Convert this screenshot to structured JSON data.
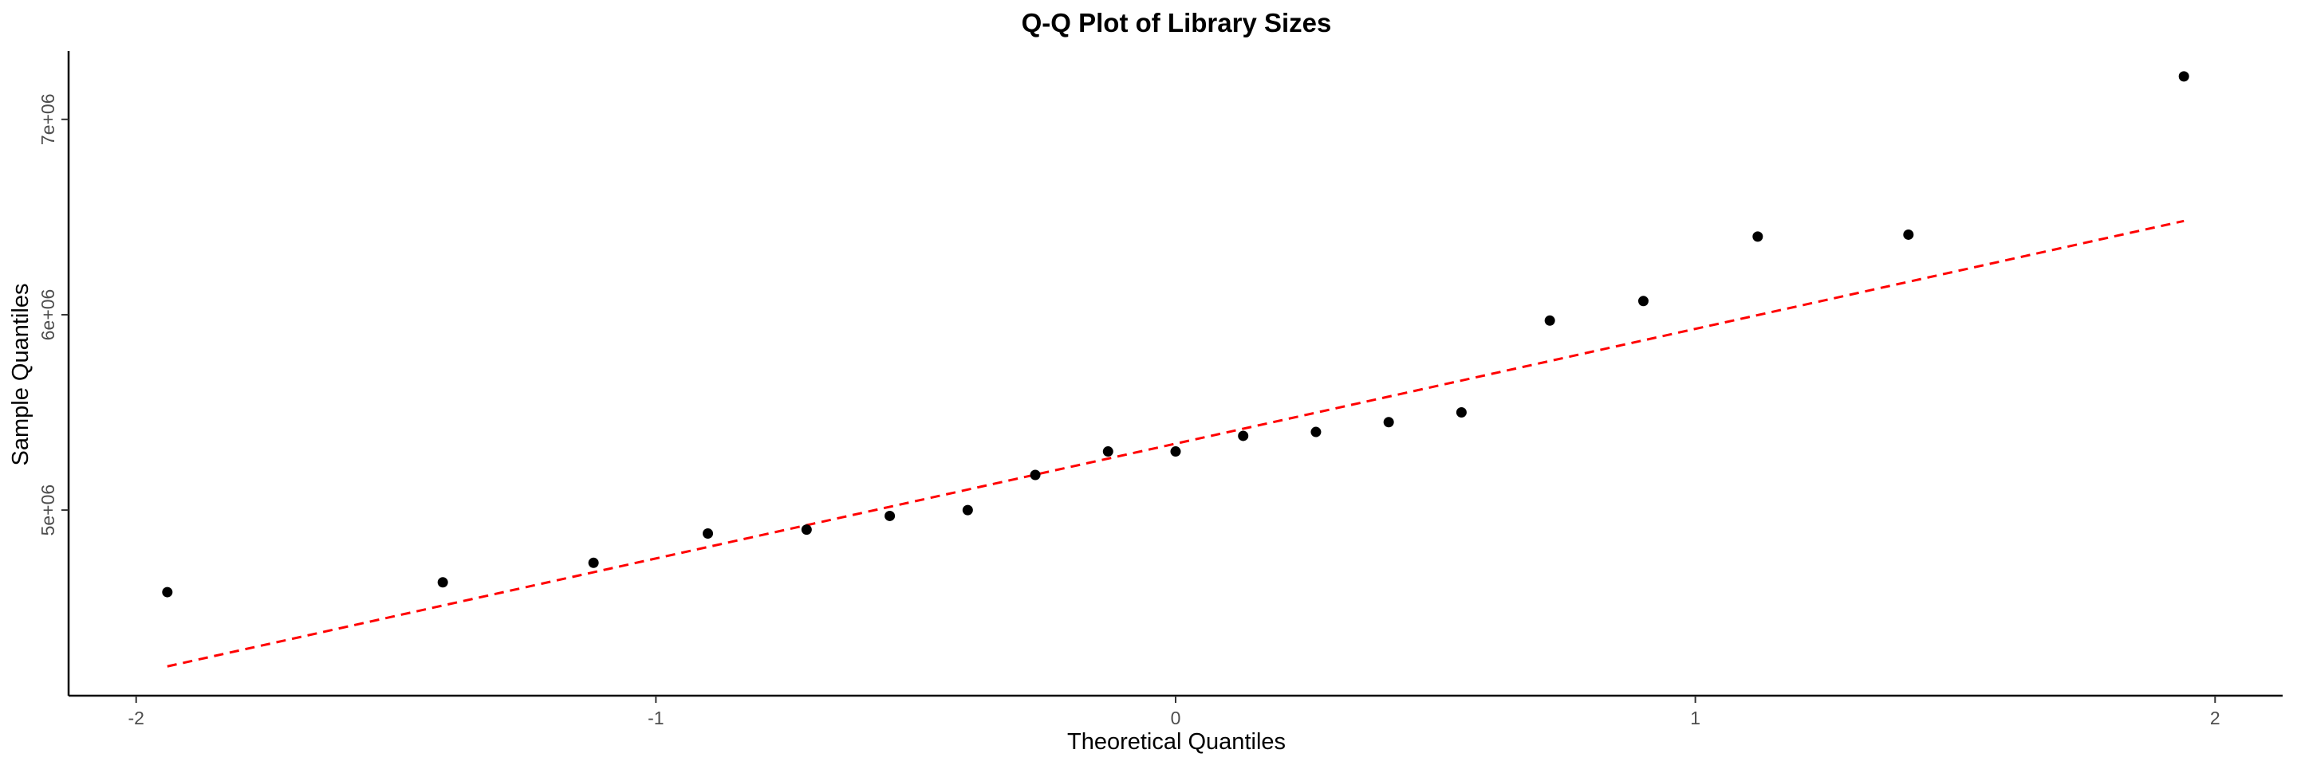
{
  "chart_data": {
    "type": "scatter",
    "title": "Q-Q Plot of Library Sizes",
    "xlabel": "Theoretical Quantiles",
    "ylabel": "Sample Quantiles",
    "xlim": [
      -2.13,
      2.13
    ],
    "ylim": [
      4050000,
      7350000
    ],
    "x_ticks": [
      {
        "value": -2,
        "label": "-2"
      },
      {
        "value": -1,
        "label": "-1"
      },
      {
        "value": 0,
        "label": "0"
      },
      {
        "value": 1,
        "label": "1"
      },
      {
        "value": 2,
        "label": "2"
      }
    ],
    "y_ticks": [
      {
        "value": 5000000,
        "label": "5e+06"
      },
      {
        "value": 6000000,
        "label": "6e+06"
      },
      {
        "value": 7000000,
        "label": "7e+06"
      }
    ],
    "grid": false,
    "legend": "none",
    "points": [
      {
        "x": -1.94,
        "y": 4580000
      },
      {
        "x": -1.41,
        "y": 4630000
      },
      {
        "x": -1.12,
        "y": 4730000
      },
      {
        "x": -0.9,
        "y": 4880000
      },
      {
        "x": -0.71,
        "y": 4900000
      },
      {
        "x": -0.55,
        "y": 4970000
      },
      {
        "x": -0.4,
        "y": 5000000
      },
      {
        "x": -0.27,
        "y": 5180000
      },
      {
        "x": -0.13,
        "y": 5300000
      },
      {
        "x": 0.0,
        "y": 5300000
      },
      {
        "x": 0.13,
        "y": 5380000
      },
      {
        "x": 0.27,
        "y": 5400000
      },
      {
        "x": 0.41,
        "y": 5450000
      },
      {
        "x": 0.55,
        "y": 5500000
      },
      {
        "x": 0.72,
        "y": 5970000
      },
      {
        "x": 0.9,
        "y": 6070000
      },
      {
        "x": 1.12,
        "y": 6400000
      },
      {
        "x": 1.41,
        "y": 6410000
      },
      {
        "x": 1.94,
        "y": 7220000
      }
    ],
    "reference_line": {
      "style": "dashed",
      "color": "#ff0000",
      "x": [
        -1.94,
        1.94
      ],
      "y": [
        4200000,
        6480000
      ]
    },
    "point_color": "#000000"
  }
}
